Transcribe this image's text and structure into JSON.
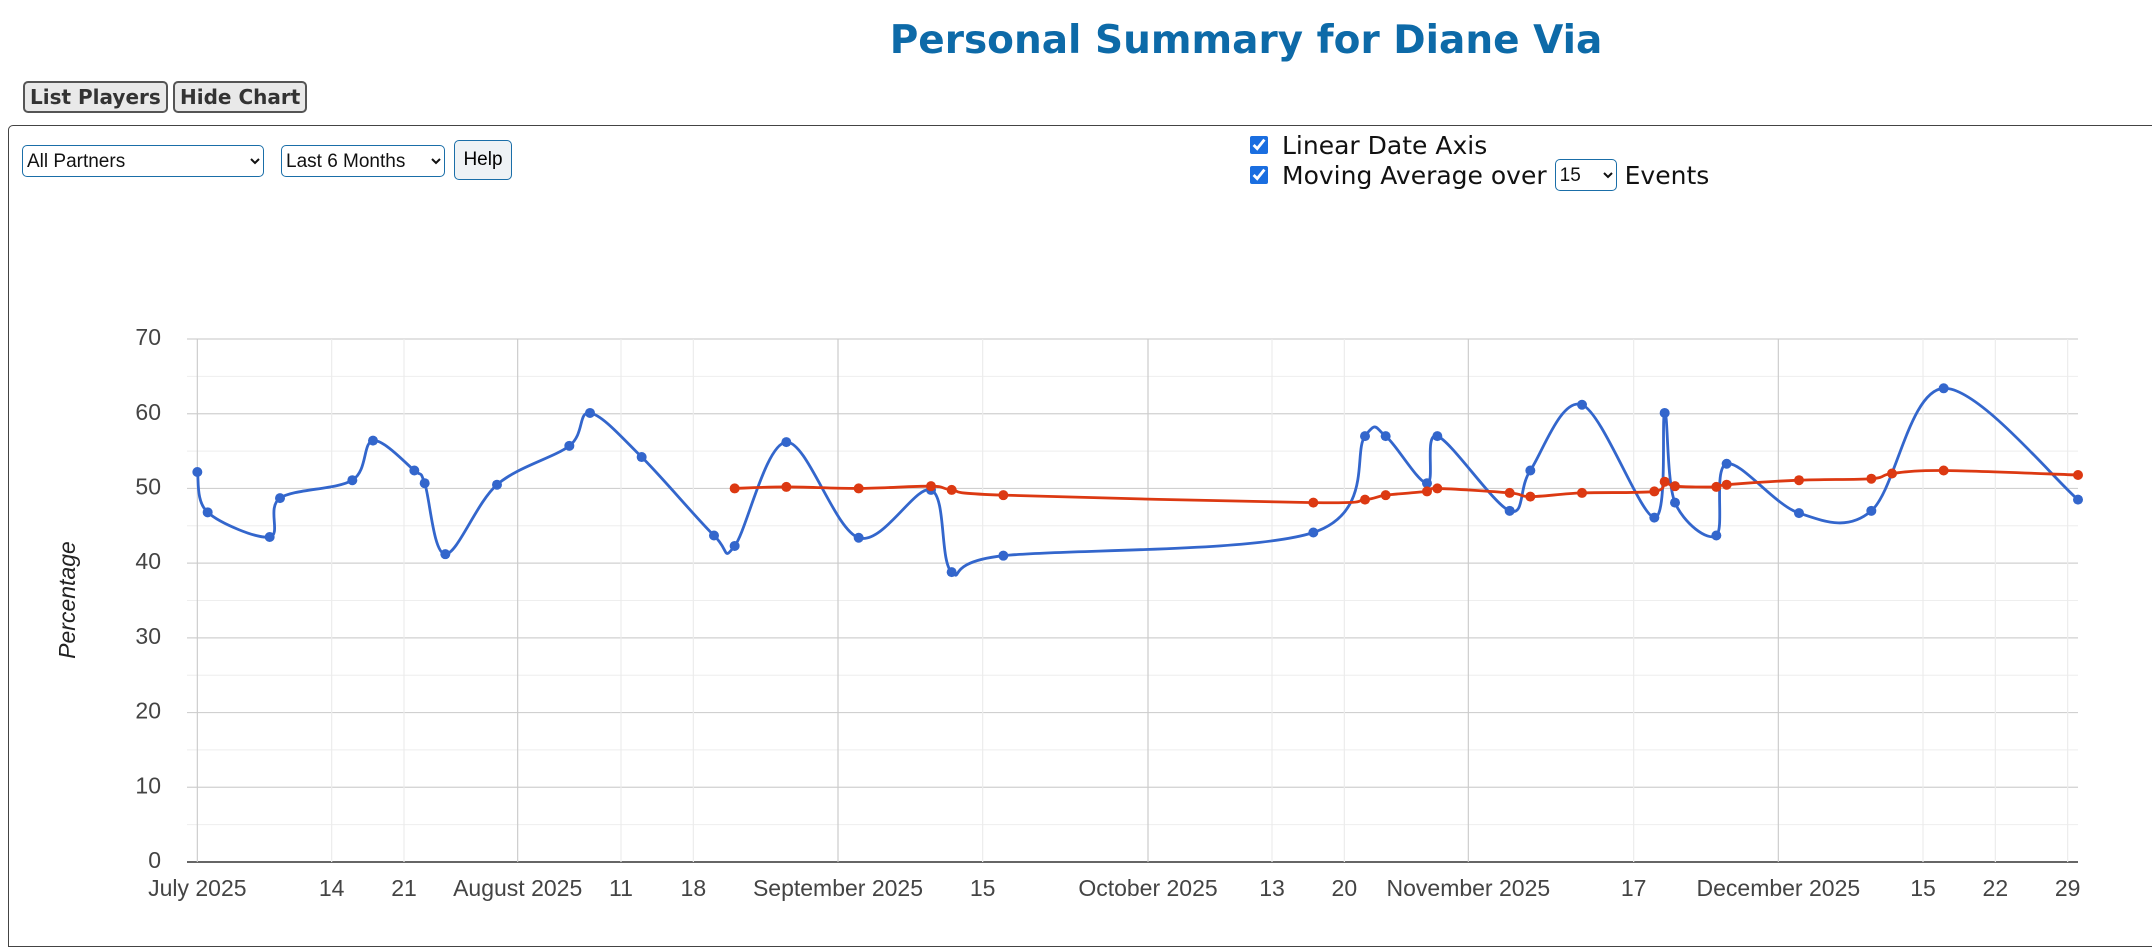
{
  "header": {
    "title": "Personal Summary for Diane Via"
  },
  "buttons": [
    "List Players",
    "Hide Chart"
  ],
  "controls": {
    "partner": "All Partners",
    "period": "Last 6 Months",
    "help": "Help",
    "linear_date_axis": "Linear Date Axis",
    "moving_average": "Moving Average over",
    "moving_average_events": "15",
    "events": "Events"
  },
  "chart_data": {
    "type": "line",
    "y_label": "Percentage",
    "xlim": [
      "2025-06-30",
      "2025-12-30"
    ],
    "ylim": [
      0,
      70
    ],
    "yticks": [
      0,
      10,
      20,
      30,
      40,
      50,
      60,
      70
    ],
    "grid": true,
    "xticks": [
      {
        "value": "2025-07-01",
        "label": "July 2025"
      },
      {
        "value": "2025-07-14",
        "label": "14"
      },
      {
        "value": "2025-07-21",
        "label": "21"
      },
      {
        "value": "2025-08-01",
        "label": "August 2025"
      },
      {
        "value": "2025-08-11",
        "label": "11"
      },
      {
        "value": "2025-08-18",
        "label": "18"
      },
      {
        "value": "2025-09-01",
        "label": "September 2025"
      },
      {
        "value": "2025-09-15",
        "label": "15"
      },
      {
        "value": "2025-10-01",
        "label": "October 2025"
      },
      {
        "value": "2025-10-13",
        "label": "13"
      },
      {
        "value": "2025-10-20",
        "label": "20"
      },
      {
        "value": "2025-11-01",
        "label": "November 2025"
      },
      {
        "value": "2025-11-17",
        "label": "17"
      },
      {
        "value": "2025-12-01",
        "label": "December 2025"
      },
      {
        "value": "2025-12-15",
        "label": "15"
      },
      {
        "value": "2025-12-22",
        "label": "22"
      },
      {
        "value": "2025-12-29",
        "label": "29"
      }
    ],
    "series": [
      {
        "color": "#3366cc",
        "x": [
          "2025-07-01",
          "2025-07-02",
          "2025-07-08",
          "2025-07-09",
          "2025-07-16",
          "2025-07-18",
          "2025-07-22",
          "2025-07-23",
          "2025-07-25",
          "2025-07-30",
          "2025-08-06",
          "2025-08-08",
          "2025-08-13",
          "2025-08-20",
          "2025-08-22",
          "2025-08-27",
          "2025-09-03",
          "2025-09-10",
          "2025-09-12",
          "2025-09-17",
          "2025-10-17",
          "2025-10-22",
          "2025-10-24",
          "2025-10-28",
          "2025-10-29",
          "2025-11-05",
          "2025-11-07",
          "2025-11-12",
          "2025-11-19",
          "2025-11-20",
          "2025-11-21",
          "2025-11-25",
          "2025-11-26",
          "2025-12-03",
          "2025-12-10",
          "2025-12-17",
          "2025-12-30"
        ],
        "values": [
          52.2,
          46.8,
          43.5,
          48.7,
          51.1,
          56.4,
          52.4,
          50.7,
          41.2,
          50.5,
          55.7,
          60.1,
          54.2,
          43.7,
          42.3,
          56.2,
          43.4,
          49.8,
          38.8,
          41.0,
          44.1,
          57.0,
          57.0,
          50.7,
          57.0,
          47.0,
          52.4,
          61.2,
          46.1,
          60.1,
          48.1,
          43.7,
          53.3,
          46.7,
          47.0,
          63.4,
          48.5
        ]
      },
      {
        "color": "#dc3912",
        "x": [
          "2025-08-22",
          "2025-08-27",
          "2025-09-03",
          "2025-09-10",
          "2025-09-12",
          "2025-09-17",
          "2025-10-17",
          "2025-10-22",
          "2025-10-24",
          "2025-10-28",
          "2025-10-29",
          "2025-11-05",
          "2025-11-07",
          "2025-11-12",
          "2025-11-19",
          "2025-11-20",
          "2025-11-21",
          "2025-11-25",
          "2025-11-26",
          "2025-12-03",
          "2025-12-10",
          "2025-12-12",
          "2025-12-17",
          "2025-12-30"
        ],
        "values": [
          50.0,
          50.2,
          50.0,
          50.3,
          49.8,
          49.1,
          48.1,
          48.5,
          49.1,
          49.6,
          50.0,
          49.4,
          48.9,
          49.4,
          49.6,
          50.9,
          50.3,
          50.2,
          50.5,
          51.1,
          51.3,
          52.0,
          52.4,
          51.8
        ]
      }
    ]
  }
}
